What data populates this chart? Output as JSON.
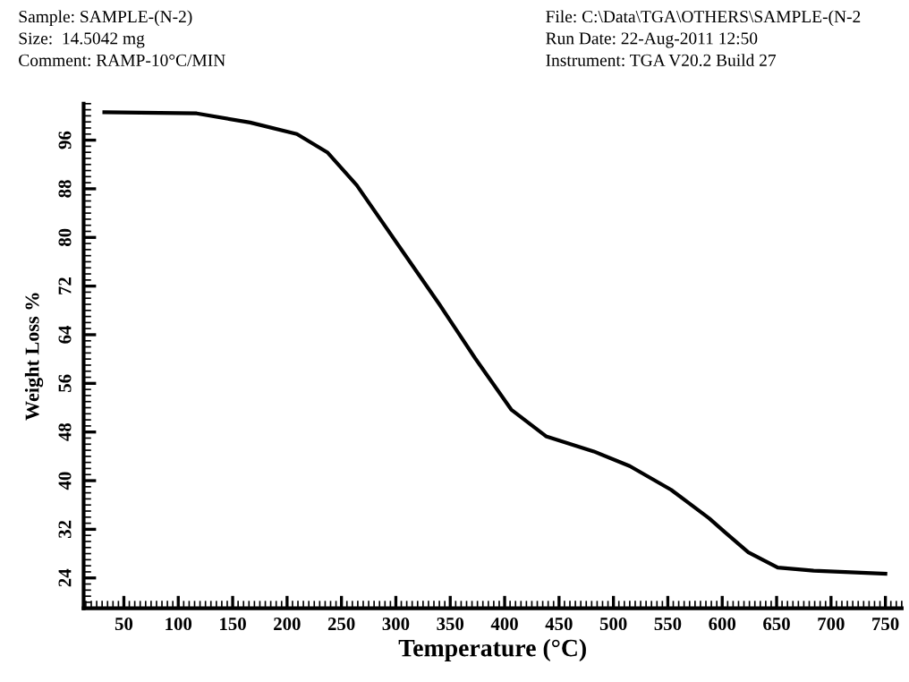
{
  "chart_data": {
    "type": "line",
    "xlabel": "Temperature (°C)",
    "ylabel": "Weight Loss %",
    "annotations": [
      "Sample: SAMPLE-(N-2)",
      "Size:  14.5042 mg",
      "Comment: RAMP-10°C/MIN",
      "File: C:\\Data\\TGA\\OTHERS\\SAMPLE-(N-2",
      "Run Date: 22-Aug-2011 12:50",
      "Instrument: TGA V20.2 Build 27"
    ],
    "series": [
      {
        "color": "#000000",
        "x": [
          32,
          117,
          166,
          209,
          237,
          264,
          302,
          340,
          373,
          406,
          438,
          482,
          515,
          553,
          588,
          602,
          624,
          651,
          684,
          750
        ],
        "values": [
          100.6,
          100.4,
          98.9,
          97,
          94,
          88.6,
          78.8,
          69,
          60.1,
          51.7,
          47.3,
          44.8,
          42.4,
          38.5,
          33.8,
          31.6,
          28.2,
          25.7,
          25.2,
          24.7
        ]
      }
    ],
    "xlim": [
      13,
      765
    ],
    "ylim": [
      19,
      102
    ],
    "xticks": [
      50,
      100,
      150,
      200,
      250,
      300,
      350,
      400,
      450,
      500,
      550,
      600,
      650,
      700,
      750
    ],
    "yticks": [
      24,
      32,
      40,
      48,
      56,
      64,
      72,
      80,
      88,
      96
    ],
    "grid": false,
    "legend": false,
    "marker": "none",
    "line_style": "solid"
  }
}
